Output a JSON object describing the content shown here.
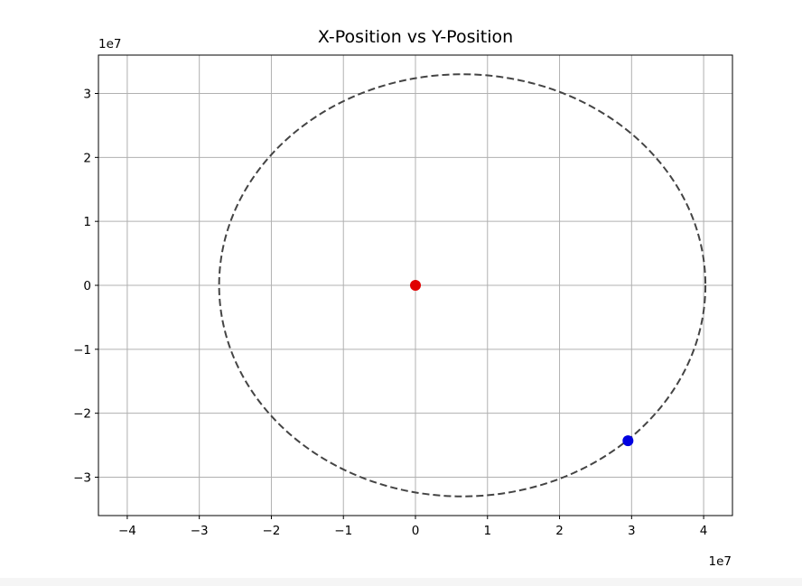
{
  "chart_data": {
    "type": "scatter",
    "title": "X-Position vs Y-Position",
    "xlabel": "",
    "ylabel": "",
    "x_offset_label": "1e7",
    "y_offset_label": "1e7",
    "xlim": [
      -4.4,
      4.4
    ],
    "ylim": [
      -3.6,
      3.6
    ],
    "xticks": [
      -4,
      -3,
      -2,
      -1,
      0,
      1,
      2,
      3,
      4
    ],
    "yticks": [
      -3,
      -2,
      -1,
      0,
      1,
      2,
      3
    ],
    "xtick_labels": [
      "−4",
      "−3",
      "−2",
      "−1",
      "0",
      "1",
      "2",
      "3",
      "4"
    ],
    "ytick_labels": [
      "−3",
      "−2",
      "−1",
      "0",
      "1",
      "2",
      "3"
    ],
    "grid": true,
    "series": [
      {
        "kind": "dashed-ellipse",
        "color": "#444444",
        "center": [
          0.65,
          0.0
        ],
        "semi_axis_x": 3.375,
        "semi_axis_y": 3.3
      },
      {
        "kind": "point",
        "color": "#e00000",
        "x": 0.0,
        "y": 0.0
      },
      {
        "kind": "point",
        "color": "#0000e0",
        "x": 2.95,
        "y": -2.43
      }
    ]
  }
}
